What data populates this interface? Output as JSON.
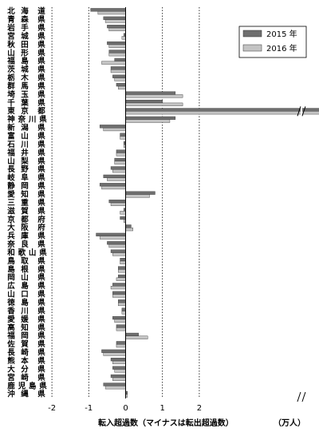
{
  "chart_data": {
    "type": "bar",
    "orientation": "horizontal",
    "xlabel": "転入超過数（マイナスは転出超過数）",
    "unit": "（万人）",
    "xlim": [
      -2,
      9
    ],
    "x_ticks": [
      -2,
      -1,
      0,
      1,
      2,
      7,
      8,
      9
    ],
    "axis_break": "between 2 and 7 (displayed positions 3 to 7 omitted)",
    "grid": "dotted vertical lines",
    "legend_position": "top-right",
    "colors": {
      "s2015": "#6f6f6f",
      "s2016": "#c4c4c4"
    },
    "categories": [
      "北海道",
      "青森県",
      "岩手県",
      "宮城県",
      "秋田県",
      "山形県",
      "福島県",
      "茨城県",
      "栃木県",
      "群馬県",
      "埼玉県",
      "千葉県",
      "東京都",
      "神奈川県",
      "新潟県",
      "富山県",
      "石川県",
      "福井県",
      "山梨県",
      "長野県",
      "岐阜県",
      "静岡県",
      "愛知県",
      "三重県",
      "滋賀県",
      "京都府",
      "大阪府",
      "兵庫県",
      "奈良県",
      "和歌山県",
      "鳥取県",
      "島根県",
      "岡山県",
      "広島県",
      "山口県",
      "徳島県",
      "香川県",
      "愛媛県",
      "高知県",
      "福岡県",
      "佐賀県",
      "長崎県",
      "熊本県",
      "大分県",
      "宮崎県",
      "鹿児島県",
      "沖縄県"
    ],
    "series": [
      {
        "name": "2015 年",
        "values": [
          -0.95,
          -0.6,
          -0.5,
          -0.05,
          -0.5,
          -0.45,
          -0.3,
          -0.4,
          -0.35,
          -0.25,
          1.35,
          1.0,
          8.2,
          1.35,
          -0.7,
          -0.15,
          -0.05,
          -0.25,
          -0.3,
          -0.4,
          -0.6,
          -0.7,
          0.8,
          -0.45,
          -0.05,
          -0.15,
          0.15,
          -0.8,
          -0.5,
          -0.4,
          -0.15,
          -0.2,
          -0.2,
          -0.35,
          -0.35,
          -0.2,
          -0.1,
          -0.35,
          -0.25,
          0.35,
          -0.25,
          -0.65,
          -0.4,
          -0.35,
          -0.4,
          -0.6,
          0.05
        ]
      },
      {
        "name": "2016 年",
        "values": [
          -0.75,
          -0.55,
          -0.45,
          -0.1,
          -0.45,
          -0.45,
          -0.65,
          -0.4,
          -0.3,
          -0.2,
          1.55,
          1.55,
          7.4,
          1.2,
          -0.6,
          -0.15,
          -0.05,
          -0.25,
          -0.3,
          -0.35,
          -0.5,
          -0.65,
          0.65,
          -0.4,
          -0.15,
          -0.05,
          0.2,
          -0.7,
          -0.45,
          -0.35,
          -0.15,
          -0.2,
          -0.25,
          -0.4,
          -0.35,
          -0.2,
          -0.1,
          -0.3,
          -0.25,
          0.6,
          -0.25,
          -0.6,
          -0.35,
          -0.3,
          -0.35,
          -0.55,
          0.05
        ]
      }
    ]
  }
}
